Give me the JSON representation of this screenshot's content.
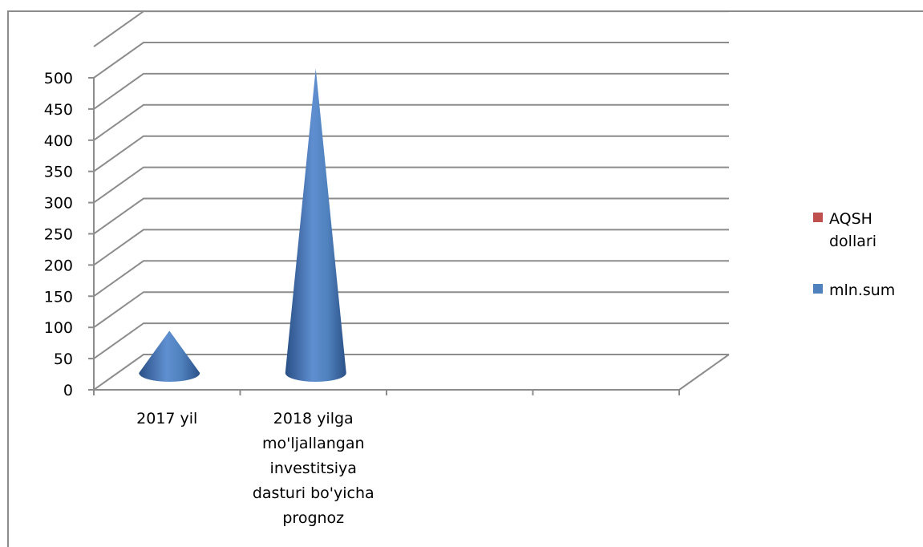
{
  "chart_data": {
    "type": "bar",
    "subtype": "3d-cone",
    "categories": [
      "2017 yil",
      "2018 yilga mo'ljallangan investitsiya dasturi bo'yicha prognoz",
      "",
      ""
    ],
    "category_lines": [
      [
        "2017 yil"
      ],
      [
        "2018 yilga",
        "mo'ljallangan",
        "investitsiya",
        "dasturi bo'yicha",
        "prognoz"
      ],
      [],
      []
    ],
    "series": [
      {
        "name": "AQSH dollari",
        "color": "#c0504d",
        "values": [
          null,
          null,
          null,
          null
        ]
      },
      {
        "name": "mln.sum",
        "color": "#4f81bd",
        "values": [
          60,
          480,
          null,
          null
        ]
      }
    ],
    "ylim": [
      0,
      500
    ],
    "yticks": [
      "0",
      "50",
      "100",
      "150",
      "200",
      "250",
      "300",
      "350",
      "400",
      "450",
      "500"
    ],
    "grid": true,
    "legend_position": "right",
    "legend_labels": [
      "AQSH\ndollari",
      "mln.sum"
    ],
    "title": "",
    "xlabel": "",
    "ylabel": ""
  }
}
